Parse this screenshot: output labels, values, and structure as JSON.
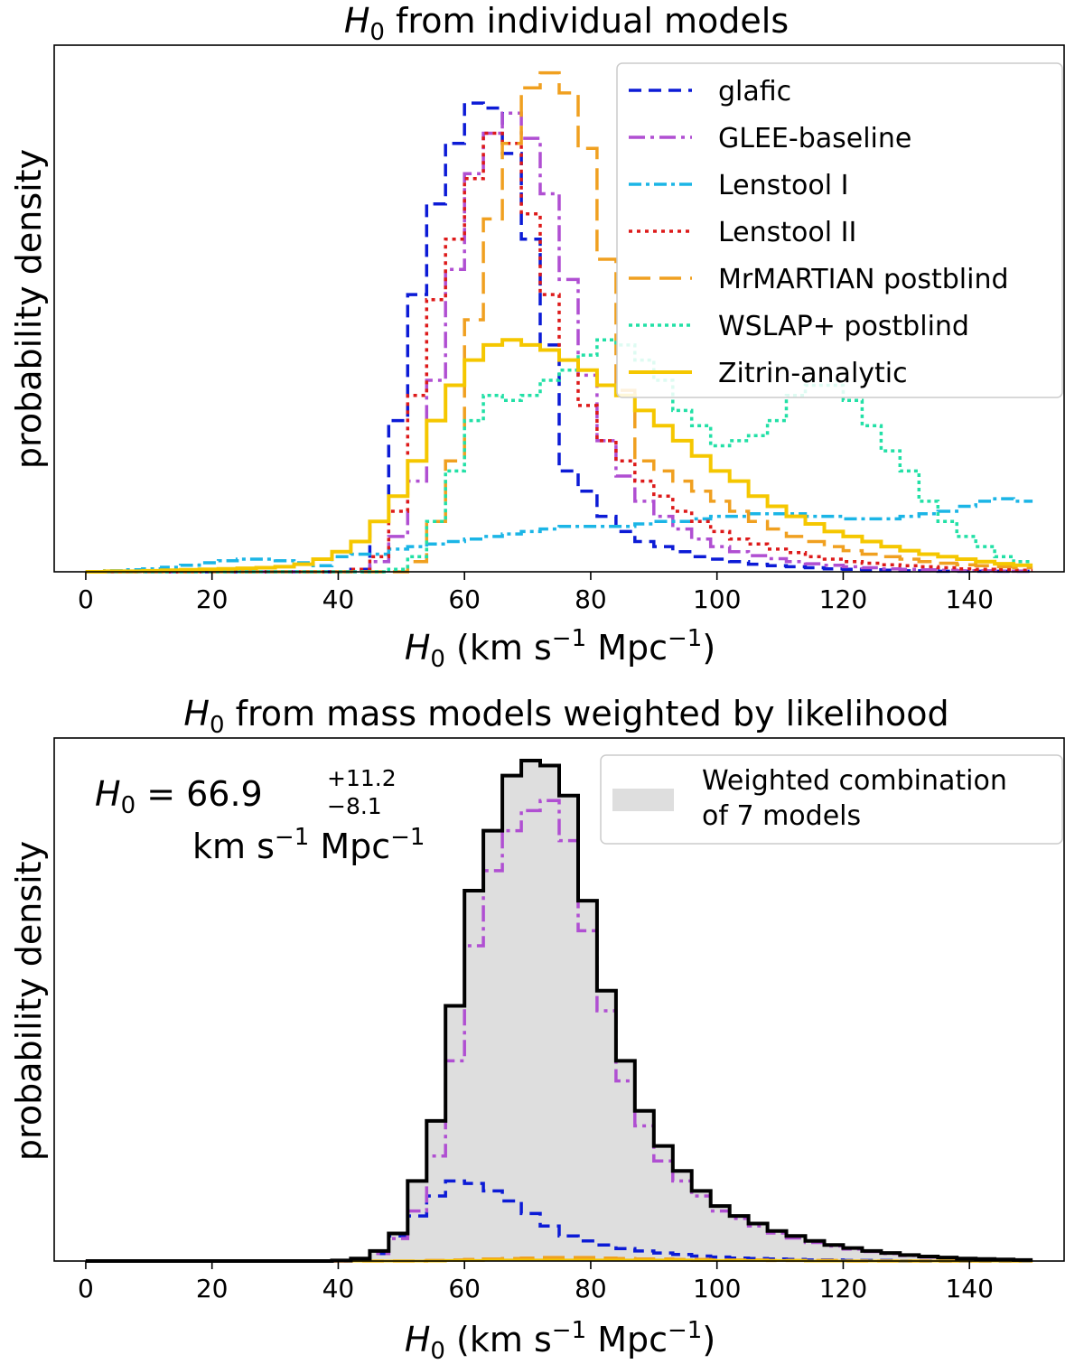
{
  "chart_data": [
    {
      "type": "histogram",
      "title_prefix": "H",
      "title_sub": "0",
      "title_rest": " from individual models",
      "ylabel": "probability density",
      "xlabel": "H0 (km s^-1 Mpc^-1)",
      "xlabel_parts": {
        "sym": "H",
        "sub": "0",
        "open": " (km",
        "s": " s",
        "sexp": "−1",
        "mpc": " Mpc",
        "mpcexp": "−1",
        "close": ")"
      },
      "xlim": [
        -5,
        155
      ],
      "ylim": [
        0,
        1.0
      ],
      "xticks": [
        0,
        20,
        40,
        60,
        80,
        100,
        120,
        140
      ],
      "legend_position": "top-right",
      "bin_width": 3,
      "x_start": 0,
      "series": [
        {
          "name": "glafic",
          "color": "#0c1bd6",
          "dash": "14,8",
          "width": 3.5,
          "values": [
            0,
            0,
            0,
            0,
            0,
            0,
            0,
            0,
            0,
            0,
            0,
            0,
            0,
            0,
            0.005,
            0.1,
            0.3,
            0.55,
            0.73,
            0.85,
            0.93,
            0.92,
            0.83,
            0.66,
            0.45,
            0.2,
            0.16,
            0.11,
            0.08,
            0.06,
            0.05,
            0.04,
            0.03,
            0.025,
            0.02,
            0.015,
            0.012,
            0.01,
            0.008,
            0.006,
            0.005,
            0.004,
            0.003,
            0.002,
            0.002,
            0.001,
            0.001,
            0.001,
            0.001,
            0.001
          ]
        },
        {
          "name": "GLEE-baseline",
          "color": "#b04fd2",
          "dash": "18,6,4,6",
          "width": 3.5,
          "values": [
            0,
            0,
            0,
            0,
            0,
            0,
            0,
            0,
            0,
            0,
            0,
            0,
            0,
            0,
            0,
            0.02,
            0.07,
            0.18,
            0.38,
            0.6,
            0.79,
            0.87,
            0.91,
            0.86,
            0.75,
            0.58,
            0.39,
            0.26,
            0.19,
            0.14,
            0.11,
            0.085,
            0.065,
            0.05,
            0.04,
            0.032,
            0.026,
            0.02,
            0.016,
            0.013,
            0.01,
            0.008,
            0.006,
            0.005,
            0.004,
            0.003,
            0.002,
            0.002,
            0.001,
            0.001
          ]
        },
        {
          "name": "Lenstool I",
          "color": "#1bb5e6",
          "dash": "14,5,4,5",
          "width": 3.5,
          "values": [
            0,
            0.002,
            0.004,
            0.006,
            0.009,
            0.013,
            0.018,
            0.022,
            0.025,
            0.025,
            0.022,
            0.018,
            0.012,
            0.03,
            0.035,
            0.035,
            0.045,
            0.05,
            0.055,
            0.06,
            0.065,
            0.07,
            0.075,
            0.08,
            0.085,
            0.09,
            0.09,
            0.09,
            0.09,
            0.095,
            0.1,
            0.1,
            0.105,
            0.11,
            0.11,
            0.115,
            0.115,
            0.115,
            0.11,
            0.11,
            0.105,
            0.105,
            0.105,
            0.11,
            0.115,
            0.12,
            0.13,
            0.14,
            0.145,
            0.14
          ]
        },
        {
          "name": "Lenstool II",
          "color": "#dd1a1a",
          "dash": "4,5",
          "width": 3.5,
          "values": [
            0,
            0,
            0,
            0,
            0,
            0,
            0,
            0,
            0,
            0,
            0,
            0,
            0,
            0,
            0.005,
            0.03,
            0.12,
            0.35,
            0.54,
            0.66,
            0.78,
            0.87,
            0.85,
            0.71,
            0.55,
            0.42,
            0.33,
            0.26,
            0.22,
            0.18,
            0.15,
            0.12,
            0.1,
            0.08,
            0.065,
            0.055,
            0.045,
            0.038,
            0.03,
            0.025,
            0.02,
            0.017,
            0.014,
            0.012,
            0.01,
            0.008,
            0.006,
            0.005,
            0.004,
            0.003
          ]
        },
        {
          "name": "MrMARTIAN postblind",
          "color": "#f0a020",
          "dash": "24,10",
          "width": 3.5,
          "values": [
            0,
            0,
            0,
            0,
            0,
            0,
            0,
            0,
            0,
            0,
            0,
            0,
            0,
            0,
            0,
            0,
            0,
            0.02,
            0.1,
            0.22,
            0.5,
            0.7,
            0.85,
            0.96,
            0.99,
            0.95,
            0.84,
            0.62,
            0.36,
            0.22,
            0.2,
            0.18,
            0.16,
            0.14,
            0.12,
            0.1,
            0.085,
            0.07,
            0.06,
            0.05,
            0.042,
            0.035,
            0.03,
            0.025,
            0.02,
            0.017,
            0.014,
            0.012,
            0.01,
            0.008
          ]
        },
        {
          "name": "WSLAP+ postblind",
          "color": "#22e0a6",
          "dash": "4,4",
          "width": 3.5,
          "values": [
            0,
            0,
            0,
            0,
            0,
            0,
            0,
            0,
            0,
            0,
            0,
            0,
            0,
            0,
            0,
            0,
            0.005,
            0.03,
            0.1,
            0.2,
            0.3,
            0.35,
            0.34,
            0.35,
            0.38,
            0.4,
            0.43,
            0.46,
            0.45,
            0.42,
            0.38,
            0.32,
            0.29,
            0.25,
            0.26,
            0.27,
            0.3,
            0.35,
            0.37,
            0.37,
            0.34,
            0.29,
            0.24,
            0.2,
            0.14,
            0.1,
            0.07,
            0.05,
            0.03,
            0.02
          ]
        },
        {
          "name": "Zitrin-analytic",
          "color": "#f5c700",
          "dash": "",
          "width": 4,
          "values": [
            0,
            0.001,
            0.001,
            0.002,
            0.003,
            0.004,
            0.005,
            0.006,
            0.007,
            0.008,
            0.01,
            0.015,
            0.025,
            0.04,
            0.06,
            0.1,
            0.15,
            0.22,
            0.3,
            0.37,
            0.42,
            0.45,
            0.46,
            0.45,
            0.44,
            0.42,
            0.4,
            0.37,
            0.35,
            0.32,
            0.29,
            0.26,
            0.23,
            0.2,
            0.18,
            0.15,
            0.13,
            0.11,
            0.095,
            0.08,
            0.07,
            0.06,
            0.05,
            0.042,
            0.035,
            0.03,
            0.025,
            0.02,
            0.016,
            0.013
          ]
        }
      ]
    },
    {
      "type": "histogram",
      "title_prefix": "H",
      "title_sub": "0",
      "title_rest": " from mass models weighted by likelihood",
      "ylabel": "probability density",
      "xlabel": "H0 (km s^-1 Mpc^-1)",
      "xlabel_parts": {
        "sym": "H",
        "sub": "0",
        "open": " (km",
        "s": " s",
        "sexp": "−1",
        "mpc": " Mpc",
        "mpcexp": "−1",
        "close": ")"
      },
      "xlim": [
        -5,
        155
      ],
      "ylim": [
        0,
        1.0
      ],
      "xticks": [
        0,
        20,
        40,
        60,
        80,
        100,
        120,
        140
      ],
      "legend_position": "top-right",
      "legend_lines": [
        "Weighted combination",
        "of 7 models"
      ],
      "annotation": {
        "lhs": "H",
        "lhs_sub": "0",
        "eq": " = 66.9",
        "sup": "+11.2",
        "sub": "−8.1",
        "unit_km": "km",
        "unit_s": " s",
        "unit_sexp": "−1",
        "unit_mpc": " Mpc",
        "unit_mpcexp": "−1"
      },
      "bin_width": 3,
      "x_start": 0,
      "combined": {
        "name": "Weighted combination of 7 models",
        "fill": "#dedede",
        "stroke": "#000000",
        "values": [
          0,
          0,
          0,
          0,
          0,
          0,
          0,
          0,
          0,
          0,
          0,
          0,
          0,
          0.001,
          0.005,
          0.02,
          0.055,
          0.16,
          0.28,
          0.51,
          0.74,
          0.86,
          0.97,
          1.0,
          0.99,
          0.93,
          0.72,
          0.54,
          0.4,
          0.3,
          0.23,
          0.18,
          0.14,
          0.11,
          0.09,
          0.075,
          0.06,
          0.05,
          0.04,
          0.032,
          0.026,
          0.02,
          0.016,
          0.012,
          0.009,
          0.007,
          0.005,
          0.004,
          0.003,
          0.002
        ]
      },
      "series": [
        {
          "name": "glafic",
          "color": "#0c1bd6",
          "dash": "14,8",
          "width": 3.5,
          "values": [
            0,
            0,
            0,
            0,
            0,
            0,
            0,
            0,
            0,
            0,
            0,
            0,
            0,
            0,
            0.001,
            0.015,
            0.05,
            0.09,
            0.13,
            0.16,
            0.155,
            0.14,
            0.12,
            0.095,
            0.07,
            0.05,
            0.04,
            0.032,
            0.025,
            0.02,
            0.016,
            0.013,
            0.01,
            0.008,
            0.006,
            0.005,
            0.004,
            0.003,
            0.002,
            0.002,
            0.001,
            0.001,
            0.001,
            0,
            0,
            0,
            0,
            0,
            0,
            0
          ]
        },
        {
          "name": "GLEE-baseline",
          "color": "#b04fd2",
          "dash": "18,6,4,6",
          "width": 3.5,
          "values": [
            0,
            0,
            0,
            0,
            0,
            0,
            0,
            0,
            0,
            0,
            0,
            0,
            0,
            0,
            0.002,
            0.015,
            0.045,
            0.1,
            0.21,
            0.4,
            0.63,
            0.78,
            0.86,
            0.9,
            0.92,
            0.84,
            0.66,
            0.5,
            0.36,
            0.27,
            0.2,
            0.16,
            0.13,
            0.1,
            0.085,
            0.07,
            0.056,
            0.046,
            0.037,
            0.03,
            0.024,
            0.019,
            0.015,
            0.011,
            0.008,
            0.006,
            0.005,
            0.004,
            0.003,
            0.002
          ]
        },
        {
          "name": "MrMARTIAN postblind",
          "color": "#f0a020",
          "dash": "24,10",
          "width": 3.5,
          "values": [
            0,
            0,
            0,
            0,
            0,
            0,
            0,
            0,
            0,
            0,
            0,
            0,
            0,
            0,
            0,
            0,
            0,
            0,
            0.001,
            0.002,
            0.003,
            0.004,
            0.005,
            0.006,
            0.007,
            0.007,
            0.007,
            0.006,
            0.005,
            0.004,
            0.004,
            0.003,
            0.003,
            0.002,
            0.002,
            0.002,
            0.001,
            0.001,
            0.001,
            0.001,
            0,
            0,
            0,
            0,
            0,
            0,
            0,
            0,
            0,
            0
          ]
        },
        {
          "name": "Zitrin-analytic",
          "color": "#f5c700",
          "dash": "",
          "width": 3,
          "values": [
            0,
            0,
            0,
            0,
            0,
            0,
            0,
            0,
            0,
            0,
            0,
            0,
            0,
            0,
            0,
            0,
            0,
            0,
            0,
            0.001,
            0.001,
            0.002,
            0.002,
            0.002,
            0.002,
            0.002,
            0.002,
            0.002,
            0.002,
            0.002,
            0.002,
            0.002,
            0.001,
            0.001,
            0.001,
            0.001,
            0.001,
            0.001,
            0,
            0,
            0,
            0,
            0,
            0,
            0,
            0,
            0,
            0,
            0,
            0
          ]
        }
      ]
    }
  ]
}
